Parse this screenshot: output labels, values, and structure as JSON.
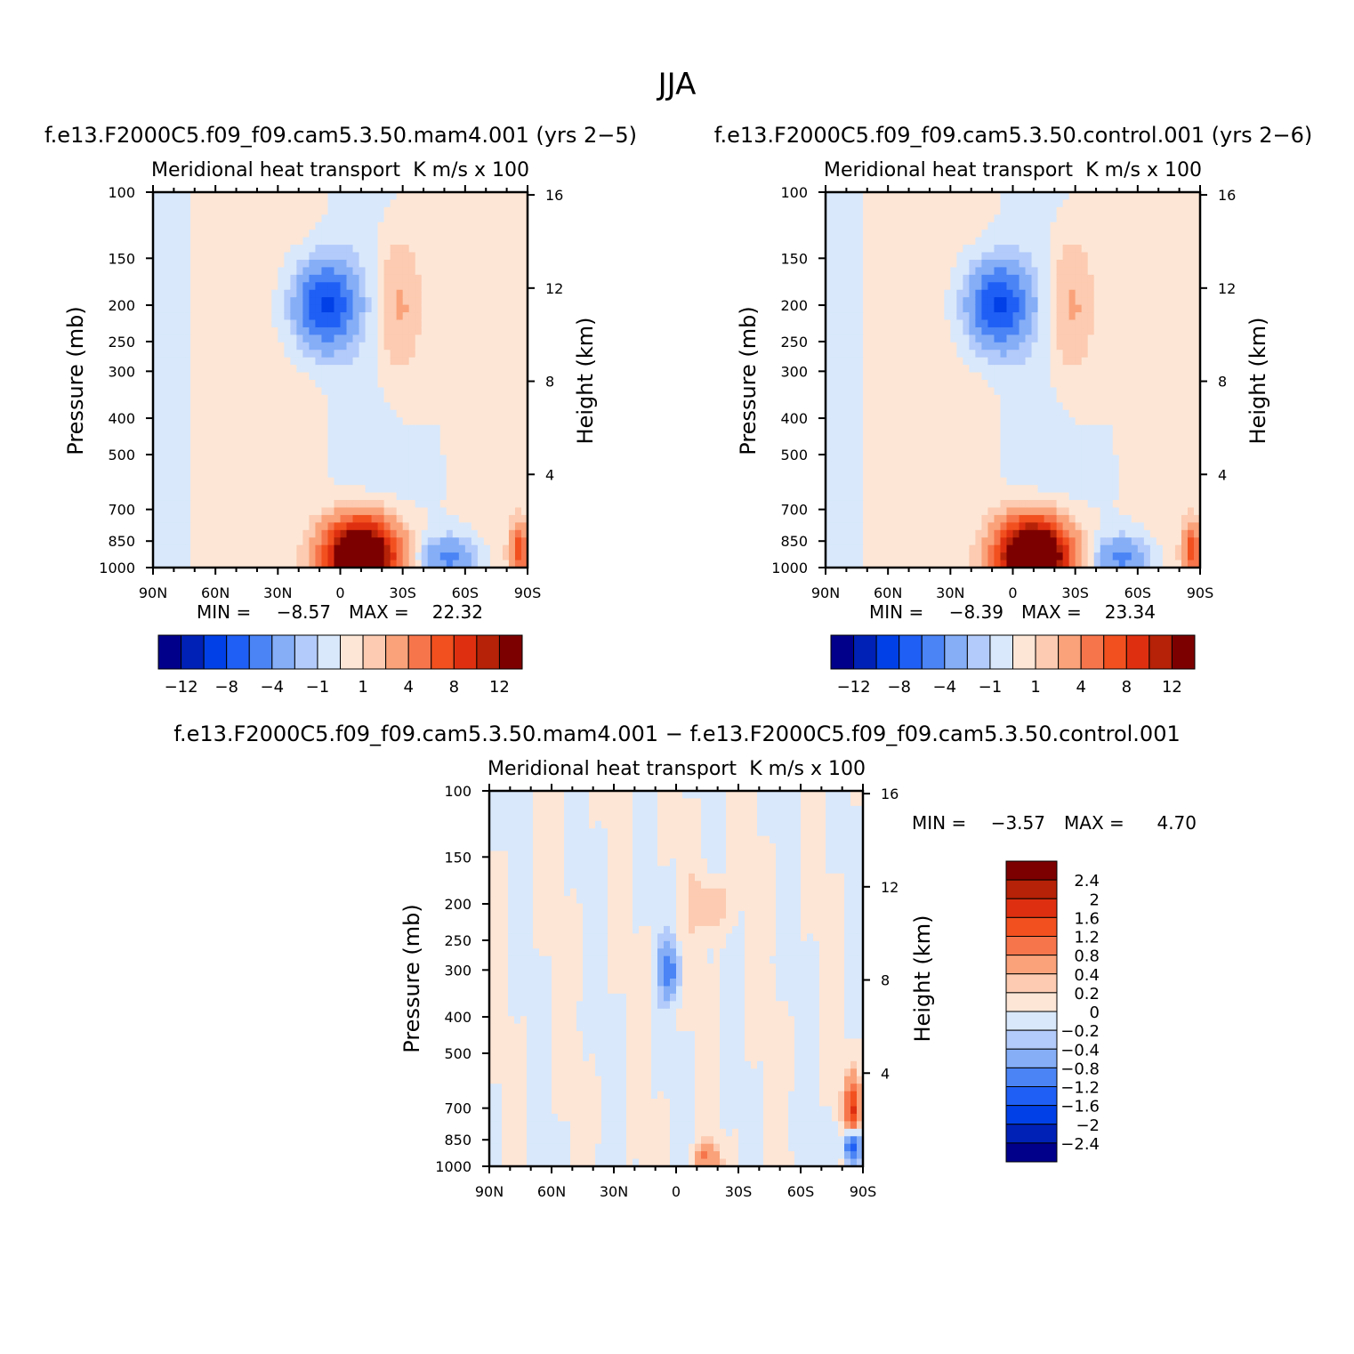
{
  "figure_title": "JJA",
  "chart_data": [
    {
      "type": "heatmap",
      "title": "f.e13.F2000C5.f09_f09.cam5.3.50.mam4.001 (yrs 2−5)",
      "left_string": "Meridional heat transport",
      "right_string": "K m/s x 100",
      "xlabel": "",
      "ylabel": "Pressure (mb)",
      "y2label": "Height (km)",
      "x_ticks": [
        "90N",
        "60N",
        "30N",
        "0",
        "30S",
        "60S",
        "90S"
      ],
      "y_ticks": [
        "100",
        "150",
        "200",
        "250",
        "300",
        "400",
        "500",
        "700",
        "850",
        "1000"
      ],
      "y2_ticks": [
        "16",
        "12",
        "8",
        "4"
      ],
      "xlim": [
        90,
        -90
      ],
      "ylim": [
        1000,
        100
      ],
      "y_scale": "log",
      "min_label": "MIN =",
      "min_value": "−8.57",
      "max_label": "MAX =",
      "max_value": "22.32",
      "levels": [
        -12,
        -10,
        -8,
        -6,
        -4,
        -2,
        -1,
        0,
        1,
        2,
        4,
        6,
        8,
        10,
        12
      ],
      "colorbar_labels": [
        "−12",
        "−8",
        "−4",
        "−1",
        "1",
        "4",
        "8",
        "12"
      ],
      "features": [
        {
          "lat": 7,
          "p": 200,
          "value": -8.6
        },
        {
          "lat": -10,
          "p": 940,
          "value": 22.3
        },
        {
          "lat": -52,
          "p": 940,
          "value": -4.5
        },
        {
          "lat": -28,
          "p": 200,
          "value": 2.5
        },
        {
          "lat": -86,
          "p": 900,
          "value": 7.0
        }
      ]
    },
    {
      "type": "heatmap",
      "title": "f.e13.F2000C5.f09_f09.cam5.3.50.control.001 (yrs 2−6)",
      "left_string": "Meridional heat transport",
      "right_string": "K m/s x 100",
      "xlabel": "",
      "ylabel": "Pressure (mb)",
      "y2label": "Height (km)",
      "x_ticks": [
        "90N",
        "60N",
        "30N",
        "0",
        "30S",
        "60S",
        "90S"
      ],
      "y_ticks": [
        "100",
        "150",
        "200",
        "250",
        "300",
        "400",
        "500",
        "700",
        "850",
        "1000"
      ],
      "y2_ticks": [
        "16",
        "12",
        "8",
        "4"
      ],
      "xlim": [
        90,
        -90
      ],
      "ylim": [
        1000,
        100
      ],
      "y_scale": "log",
      "min_label": "MIN =",
      "min_value": "−8.39",
      "max_label": "MAX =",
      "max_value": "23.34",
      "levels": [
        -12,
        -10,
        -8,
        -6,
        -4,
        -2,
        -1,
        0,
        1,
        2,
        4,
        6,
        8,
        10,
        12
      ],
      "colorbar_labels": [
        "−12",
        "−8",
        "−4",
        "−1",
        "1",
        "4",
        "8",
        "12"
      ],
      "features": [
        {
          "lat": 7,
          "p": 200,
          "value": -8.4
        },
        {
          "lat": -10,
          "p": 940,
          "value": 23.3
        },
        {
          "lat": -52,
          "p": 940,
          "value": -4.5
        },
        {
          "lat": -28,
          "p": 200,
          "value": 2.5
        },
        {
          "lat": -86,
          "p": 900,
          "value": 7.0
        }
      ]
    },
    {
      "type": "heatmap",
      "title": "f.e13.F2000C5.f09_f09.cam5.3.50.mam4.001 − f.e13.F2000C5.f09_f09.cam5.3.50.control.001",
      "left_string": "Meridional heat transport",
      "right_string": "K m/s x 100",
      "xlabel": "",
      "ylabel": "Pressure (mb)",
      "y2label": "Height (km)",
      "x_ticks": [
        "90N",
        "60N",
        "30N",
        "0",
        "30S",
        "60S",
        "90S"
      ],
      "y_ticks": [
        "100",
        "150",
        "200",
        "250",
        "300",
        "400",
        "500",
        "700",
        "850",
        "1000"
      ],
      "y2_ticks": [
        "16",
        "12",
        "8",
        "4"
      ],
      "xlim": [
        90,
        -90
      ],
      "ylim": [
        1000,
        100
      ],
      "y_scale": "log",
      "min_label": "MIN =",
      "min_value": "−3.57",
      "max_label": "MAX =",
      "max_value": "4.70",
      "levels": [
        -2.4,
        -2,
        -1.6,
        -1.2,
        -0.8,
        -0.4,
        -0.2,
        0,
        0.2,
        0.4,
        0.8,
        1.2,
        1.6,
        2,
        2.4
      ],
      "colorbar_labels": [
        "2.4",
        "2",
        "1.6",
        "1.2",
        "0.8",
        "0.4",
        "0.2",
        "0",
        "−0.2",
        "−0.4",
        "−0.8",
        "−1.2",
        "−1.6",
        "−2",
        "−2.4"
      ],
      "features": [
        {
          "lat": 3,
          "p": 300,
          "value": -0.9
        },
        {
          "lat": -18,
          "p": 200,
          "value": 0.5
        },
        {
          "lat": -85,
          "p": 700,
          "value": 1.5
        },
        {
          "lat": -85,
          "p": 880,
          "value": -2.0
        },
        {
          "lat": -15,
          "p": 950,
          "value": 0.8
        }
      ]
    }
  ],
  "colors": {
    "palette": [
      "#00008a",
      "#0021b5",
      "#0040e6",
      "#1f5ff5",
      "#4a84f5",
      "#85aef7",
      "#b3cbfa",
      "#d9e8fb",
      "#fde6d6",
      "#fccbb1",
      "#faa27a",
      "#f7754b",
      "#f2501f",
      "#de3010",
      "#b52207",
      "#7d0000"
    ],
    "text": "#000000"
  }
}
